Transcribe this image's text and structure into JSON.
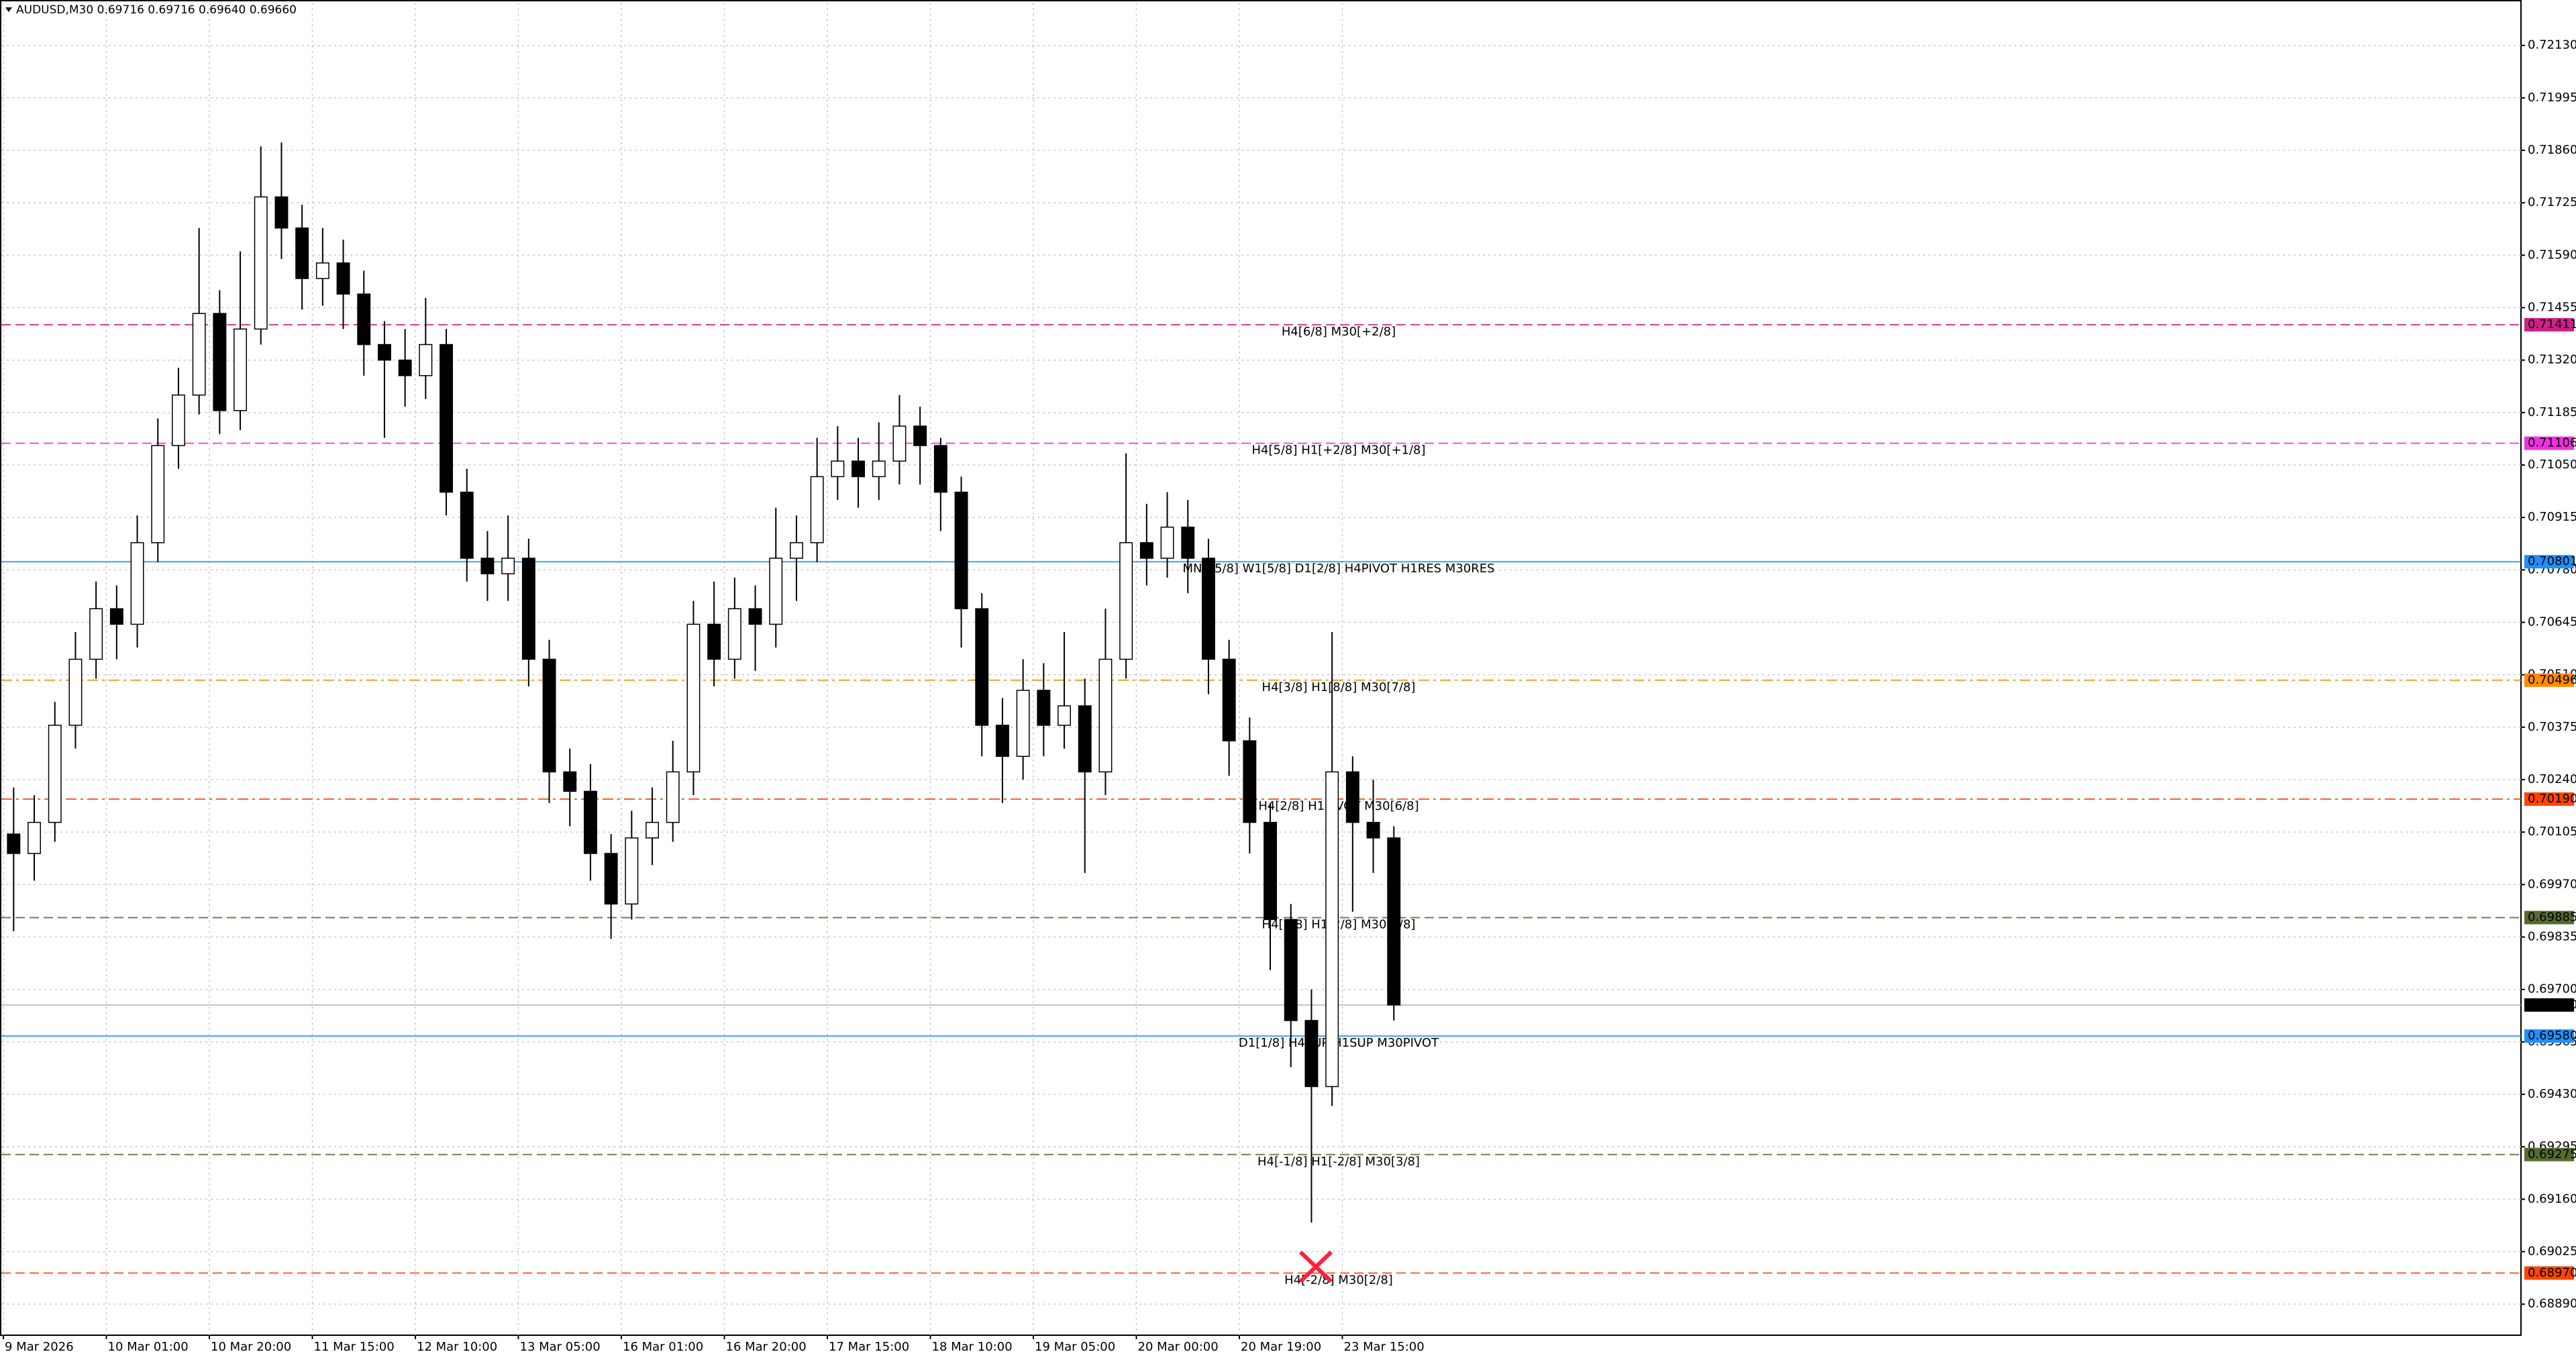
{
  "header": "AUDUSD,M30  0.69716 0.69716 0.69640 0.69660",
  "chart_data": {
    "type": "candlestick",
    "categories": [
      "9 Mar 2026",
      null,
      null,
      null,
      null,
      "10 Mar 01:00",
      null,
      null,
      null,
      null,
      "10 Mar 20:00",
      null,
      null,
      null,
      null,
      "11 Mar 15:00",
      null,
      null,
      null,
      null,
      "12 Mar 10:00",
      null,
      null,
      null,
      null,
      "13 Mar 05:00",
      null,
      null,
      null,
      null,
      "16 Mar 01:00",
      null,
      null,
      null,
      null,
      "16 Mar 20:00",
      null,
      null,
      null,
      null,
      "17 Mar 15:00",
      null,
      null,
      null,
      null,
      "18 Mar 10:00",
      null,
      null,
      null,
      null,
      "19 Mar 05:00",
      null,
      null,
      null,
      null,
      "20 Mar 00:00",
      null,
      null,
      null,
      null,
      "20 Mar 19:00",
      null,
      null,
      null,
      null,
      "23 Mar 15:00",
      null,
      null
    ],
    "open": [
      0.701,
      0.7005,
      0.7013,
      0.7038,
      0.7055,
      0.7068,
      0.7064,
      0.7085,
      0.711,
      0.7123,
      0.7144,
      0.7119,
      0.714,
      0.7174,
      0.7166,
      0.7153,
      0.7157,
      0.7149,
      0.7136,
      0.7132,
      0.7128,
      0.7136,
      0.7098,
      0.7081,
      0.7077,
      0.7081,
      0.7055,
      0.7026,
      0.7021,
      0.7005,
      0.6992,
      0.7009,
      0.7013,
      0.7026,
      0.7064,
      0.7055,
      0.7068,
      0.7064,
      0.7081,
      0.7085,
      0.7102,
      0.7106,
      0.7102,
      0.7106,
      0.7115,
      0.711,
      0.7098,
      0.7068,
      0.7038,
      0.703,
      0.7047,
      0.7038,
      0.7043,
      0.7026,
      0.7055,
      0.7085,
      0.7081,
      0.7089,
      0.7081,
      0.7055,
      0.7034,
      0.7013,
      0.6988,
      0.6962,
      0.6945,
      0.7026,
      0.7013,
      0.7009
    ],
    "high": [
      0.7022,
      0.702,
      0.7044,
      0.7062,
      0.7075,
      0.7074,
      0.7092,
      0.7117,
      0.713,
      0.7166,
      0.715,
      0.716,
      0.7187,
      0.7188,
      0.7172,
      0.7166,
      0.7163,
      0.7155,
      0.7142,
      0.714,
      0.7148,
      0.714,
      0.7104,
      0.7088,
      0.7092,
      0.7086,
      0.706,
      0.7032,
      0.7028,
      0.701,
      0.7016,
      0.7022,
      0.7034,
      0.707,
      0.7075,
      0.7076,
      0.7074,
      0.7094,
      0.7092,
      0.7112,
      0.7115,
      0.7112,
      0.7116,
      0.7123,
      0.712,
      0.7112,
      0.7102,
      0.7072,
      0.7045,
      0.7055,
      0.7054,
      0.7062,
      0.705,
      0.7068,
      0.7108,
      0.7095,
      0.7098,
      0.7096,
      0.7086,
      0.706,
      0.704,
      0.7018,
      0.6992,
      0.697,
      0.7062,
      0.703,
      0.7024,
      0.7012
    ],
    "low": [
      0.6985,
      0.6998,
      0.7008,
      0.7032,
      0.705,
      0.7055,
      0.7058,
      0.708,
      0.7104,
      0.7118,
      0.7113,
      0.7114,
      0.7136,
      0.7158,
      0.7145,
      0.7146,
      0.714,
      0.7128,
      0.7112,
      0.712,
      0.7122,
      0.7092,
      0.7075,
      0.707,
      0.707,
      0.7048,
      0.7018,
      0.7012,
      0.6998,
      0.6983,
      0.6988,
      0.7002,
      0.7008,
      0.702,
      0.7048,
      0.705,
      0.7052,
      0.7058,
      0.707,
      0.708,
      0.7096,
      0.7094,
      0.7096,
      0.71,
      0.71,
      0.7088,
      0.7058,
      0.703,
      0.7018,
      0.7024,
      0.703,
      0.7032,
      0.7,
      0.702,
      0.705,
      0.7074,
      0.7076,
      0.7072,
      0.7046,
      0.7025,
      0.7005,
      0.6975,
      0.695,
      0.691,
      0.694,
      0.699,
      0.7,
      0.6962
    ],
    "close": [
      0.7005,
      0.7013,
      0.7038,
      0.7055,
      0.7068,
      0.7064,
      0.7085,
      0.711,
      0.7123,
      0.7144,
      0.7119,
      0.714,
      0.7174,
      0.7166,
      0.7153,
      0.7157,
      0.7149,
      0.7136,
      0.7132,
      0.7128,
      0.7136,
      0.7098,
      0.7081,
      0.7077,
      0.7081,
      0.7055,
      0.7026,
      0.7021,
      0.7005,
      0.6992,
      0.7009,
      0.7013,
      0.7026,
      0.7064,
      0.7055,
      0.7068,
      0.7064,
      0.7081,
      0.7085,
      0.7102,
      0.7106,
      0.7102,
      0.7106,
      0.7115,
      0.711,
      0.7098,
      0.7068,
      0.7038,
      0.703,
      0.7047,
      0.7038,
      0.7043,
      0.7026,
      0.7055,
      0.7085,
      0.7081,
      0.7089,
      0.7081,
      0.7055,
      0.7034,
      0.7013,
      0.6988,
      0.6962,
      0.6945,
      0.7026,
      0.7013,
      0.7009,
      0.6966
    ],
    "up_color": "#ffffff",
    "down_color": "#000000",
    "ylim": [
      0.6881,
      0.7224
    ],
    "yticks": [
      {
        "value": 0.6889,
        "label": "0.68890"
      },
      {
        "value": 0.69025,
        "label": "0.69025"
      },
      {
        "value": 0.6916,
        "label": "0.69160"
      },
      {
        "value": 0.69295,
        "label": "0.69295"
      },
      {
        "value": 0.6943,
        "label": "0.69430"
      },
      {
        "value": 0.69565,
        "label": "0.69565"
      },
      {
        "value": 0.697,
        "label": "0.69700"
      },
      {
        "value": 0.69835,
        "label": "0.69835"
      },
      {
        "value": 0.6997,
        "label": "0.69970"
      },
      {
        "value": 0.70105,
        "label": "0.70105"
      },
      {
        "value": 0.7024,
        "label": "0.70240"
      },
      {
        "value": 0.70375,
        "label": "0.70375"
      },
      {
        "value": 0.7051,
        "label": "0.70510"
      },
      {
        "value": 0.70645,
        "label": "0.70645"
      },
      {
        "value": 0.7078,
        "label": "0.70780"
      },
      {
        "value": 0.70915,
        "label": "0.70915"
      },
      {
        "value": 0.7105,
        "label": "0.71050"
      },
      {
        "value": 0.71185,
        "label": "0.71185"
      },
      {
        "value": 0.7132,
        "label": "0.71320"
      },
      {
        "value": 0.71455,
        "label": "0.71455"
      },
      {
        "value": 0.7159,
        "label": "0.71590"
      },
      {
        "value": 0.71725,
        "label": "0.71725"
      },
      {
        "value": 0.7186,
        "label": "0.71860"
      },
      {
        "value": 0.71995,
        "label": "0.71995"
      },
      {
        "value": 0.7213,
        "label": "0.72130"
      }
    ],
    "grid": true,
    "levels": [
      {
        "name": "H4[6/8] M30[+2/8]",
        "value": 0.71411,
        "value_label": "0.71411",
        "color": "#d0208a",
        "style": "dashed"
      },
      {
        "name": "H4[5/8] H1[+2/8] M30[+1/8]",
        "value": 0.71106,
        "value_label": "0.71106",
        "color": "#f030e0",
        "style": "dashed"
      },
      {
        "name": "MN1[5/8] W1[5/8] D1[2/8] H4PIVOT H1RES M30RES",
        "value": 0.70801,
        "value_label": "0.70801",
        "color": "#1e90ff",
        "style": "solid"
      },
      {
        "name": "H4[3/8] H1[8/8] M30[7/8]",
        "value": 0.70496,
        "value_label": "0.70496",
        "color": "#ff8c00",
        "style": "dashdot"
      },
      {
        "name": "H4[2/8] H1PIVOT M30[6/8]",
        "value": 0.7019,
        "value_label": "0.70190",
        "color": "#ff4500",
        "style": "dashdot"
      },
      {
        "name": "H4[1/8] H1[2/8] M30[5/8]",
        "value": 0.69885,
        "value_label": "0.69885",
        "color": "#556b2f",
        "style": "dashed"
      },
      {
        "name": "D1[1/8] H4SUP H1SUP M30PIVOT",
        "value": 0.6958,
        "value_label": "0.69580",
        "color": "#1e90ff",
        "style": "solid"
      },
      {
        "name": "H4[-1/8] H1[-2/8] M30[3/8]",
        "value": 0.69275,
        "value_label": "0.69275",
        "color": "#556b2f",
        "style": "dashed"
      },
      {
        "name": "H4[-2/8] M30[2/8]",
        "value": 0.6897,
        "value_label": "0.68970",
        "color": "#ff4500",
        "style": "dashed"
      }
    ],
    "current_price": {
      "value": 0.6966,
      "label": "0.69660"
    }
  }
}
